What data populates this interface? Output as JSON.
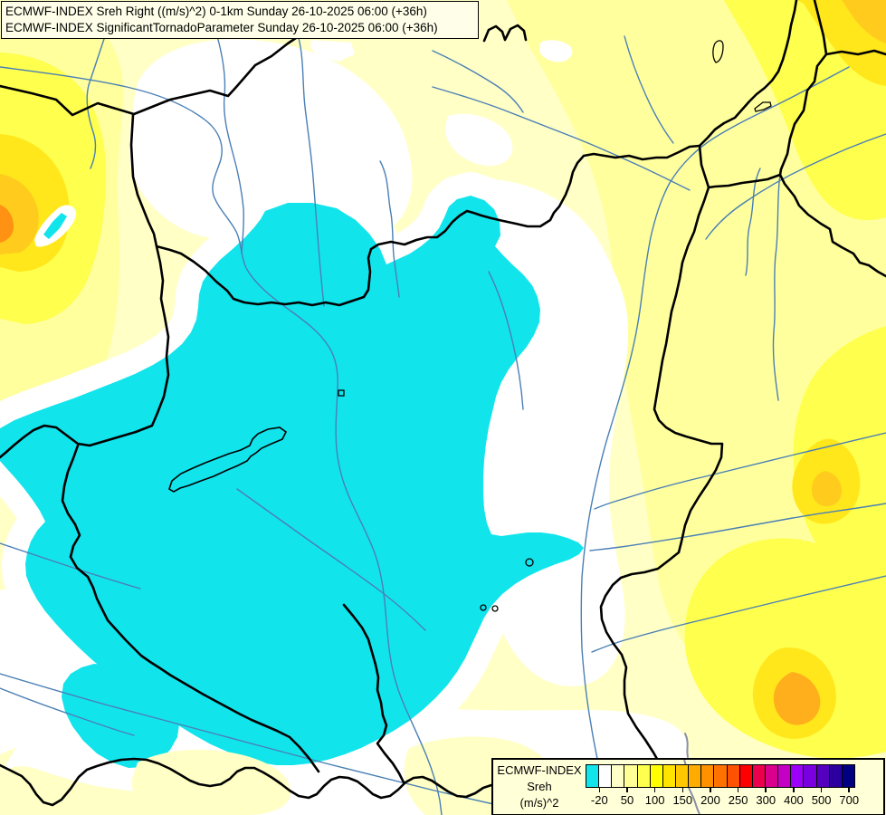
{
  "title_box": {
    "line1": "ECMWF-INDEX Sreh Right ((m/s)^2) 0-1km Sunday 26-10-2025 06:00 (+36h)",
    "line2": "ECMWF-INDEX SignificantTornadoParameter Sunday 26-10-2025 06:00 (+36h)"
  },
  "legend": {
    "product_label": "ECMWF-INDEX",
    "parameter_label": "Sreh",
    "units_label": "(m/s)^2",
    "scale": {
      "tick_labels": [
        "-20",
        "50",
        "100",
        "150",
        "200",
        "250",
        "300",
        "400",
        "500",
        "700"
      ],
      "cell_colors": [
        "#12E4EC",
        "#FFFFFF",
        "#FFFFC8",
        "#FFFF96",
        "#FFFF4D",
        "#FFFF00",
        "#FFE400",
        "#FFC800",
        "#FFAC00",
        "#FF9000",
        "#FF7200",
        "#FF5200",
        "#FF0000",
        "#EC004E",
        "#D8008C",
        "#C400C4",
        "#9C00F8",
        "#7A00E0",
        "#5400BE",
        "#2C009E",
        "#000080"
      ]
    }
  },
  "map": {
    "palette": {
      "background": "#FFFFC6",
      "negative_shear_region": "#12E4EC",
      "white_band": "#FFFFFF",
      "yellow_light": "#FFFF9E",
      "yellow": "#FFFF4D",
      "yellow_strong": "#FFE71C",
      "gold": "#FFCC1E",
      "orange": "#FFAE1C",
      "orange_deep": "#FF9212",
      "country_border": "#000000",
      "river": "#4A7FB5",
      "title_background": "#FFFFE9",
      "legend_background": "#FFFFD8"
    }
  }
}
